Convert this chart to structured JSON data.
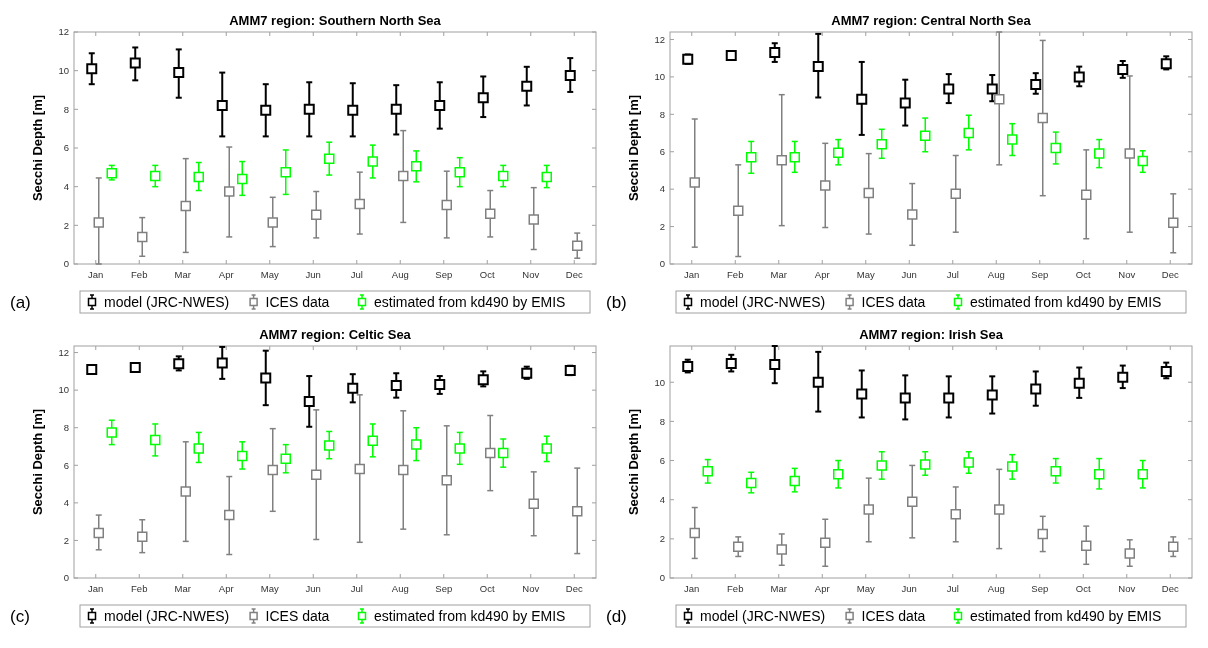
{
  "chart_data": [
    {
      "type": "scatter",
      "title": "AMM7 region: Southern North Sea",
      "ylabel": "Secchi Depth [m]",
      "categories": [
        "Jan",
        "Feb",
        "Mar",
        "Apr",
        "May",
        "Jun",
        "Jul",
        "Aug",
        "Sep",
        "Oct",
        "Nov",
        "Dec"
      ],
      "ylim": [
        0,
        12
      ],
      "yticks": [
        0,
        2,
        4,
        6,
        8,
        10,
        12
      ],
      "grid": false,
      "legend": "bottom",
      "marker": "square",
      "annotations": [
        "(a)"
      ],
      "series": [
        {
          "name": "model (JRC-NWES)",
          "color": "#000000",
          "values": [
            10.1,
            10.4,
            9.9,
            8.2,
            7.95,
            8.0,
            7.95,
            8.0,
            8.2,
            8.6,
            9.2,
            9.75
          ],
          "errors": [
            [
              9.3,
              10.9
            ],
            [
              9.5,
              11.2
            ],
            [
              8.6,
              11.1
            ],
            [
              6.6,
              9.9
            ],
            [
              6.6,
              9.3
            ],
            [
              6.6,
              9.4
            ],
            [
              6.6,
              9.35
            ],
            [
              6.7,
              9.25
            ],
            [
              7.0,
              9.4
            ],
            [
              7.6,
              9.7
            ],
            [
              8.2,
              10.2
            ],
            [
              8.9,
              10.65
            ]
          ]
        },
        {
          "name": "ICES data",
          "color": "#808080",
          "values": [
            2.15,
            1.4,
            3.0,
            3.75,
            2.15,
            2.55,
            3.1,
            4.55,
            3.05,
            2.6,
            2.3,
            0.95
          ],
          "errors": [
            [
              0,
              4.45
            ],
            [
              0.4,
              2.4
            ],
            [
              0.6,
              5.45
            ],
            [
              1.4,
              6.05
            ],
            [
              0.9,
              3.45
            ],
            [
              1.35,
              3.75
            ],
            [
              1.55,
              4.75
            ],
            [
              2.15,
              6.9
            ],
            [
              1.35,
              4.8
            ],
            [
              1.4,
              3.8
            ],
            [
              0.75,
              3.95
            ],
            [
              0.3,
              1.6
            ]
          ]
        },
        {
          "name": "estimated from kd490 by EMIS",
          "color": "#00ff00",
          "values": [
            4.7,
            4.55,
            4.5,
            4.4,
            4.75,
            5.45,
            5.3,
            5.05,
            4.75,
            4.55,
            4.5,
            null
          ],
          "errors": [
            [
              4.35,
              5.1
            ],
            [
              4.0,
              5.1
            ],
            [
              3.8,
              5.25
            ],
            [
              3.55,
              5.3
            ],
            [
              3.6,
              5.9
            ],
            [
              4.6,
              6.3
            ],
            [
              4.45,
              6.15
            ],
            [
              4.25,
              5.85
            ],
            [
              4.0,
              5.5
            ],
            [
              4.0,
              5.1
            ],
            [
              3.95,
              5.1
            ],
            null
          ]
        }
      ]
    },
    {
      "type": "scatter",
      "title": "AMM7 region: Central North Sea",
      "ylabel": "Secchi Depth [m]",
      "categories": [
        "Jan",
        "Feb",
        "Mar",
        "Apr",
        "May",
        "Jun",
        "Jul",
        "Aug",
        "Sep",
        "Oct",
        "Nov",
        "Dec"
      ],
      "ylim": [
        0,
        12.4
      ],
      "yticks": [
        0,
        2,
        4,
        6,
        8,
        10,
        12
      ],
      "grid": false,
      "legend": "bottom",
      "marker": "square",
      "annotations": [
        "(b)"
      ],
      "series": [
        {
          "name": "model (JRC-NWES)",
          "color": "#000000",
          "values": [
            10.95,
            11.15,
            11.3,
            10.55,
            8.8,
            8.6,
            9.35,
            9.35,
            9.6,
            10.0,
            10.4,
            10.7
          ],
          "errors": [
            [
              10.7,
              11.2
            ],
            [
              11.0,
              11.3
            ],
            [
              10.8,
              11.8
            ],
            [
              8.9,
              12.3
            ],
            [
              6.9,
              10.8
            ],
            [
              7.4,
              9.85
            ],
            [
              8.6,
              10.15
            ],
            [
              8.7,
              10.1
            ],
            [
              9.1,
              10.2
            ],
            [
              9.5,
              10.55
            ],
            [
              9.95,
              10.85
            ],
            [
              10.4,
              11.1
            ]
          ]
        },
        {
          "name": "ICES data",
          "color": "#808080",
          "values": [
            4.35,
            2.85,
            5.55,
            4.2,
            3.8,
            2.65,
            3.75,
            8.8,
            7.8,
            3.7,
            5.9,
            2.2
          ],
          "errors": [
            [
              0.9,
              7.75
            ],
            [
              0.4,
              5.3
            ],
            [
              2.05,
              9.05
            ],
            [
              1.95,
              6.45
            ],
            [
              1.6,
              5.9
            ],
            [
              1.0,
              4.3
            ],
            [
              1.7,
              5.8
            ],
            [
              5.3,
              12.4
            ],
            [
              3.65,
              11.95
            ],
            [
              1.35,
              6.1
            ],
            [
              1.7,
              10.05
            ],
            [
              0.6,
              3.75
            ]
          ]
        },
        {
          "name": "estimated from kd490 by EMIS",
          "color": "#00ff00",
          "values": [
            null,
            5.7,
            5.7,
            5.95,
            6.4,
            6.85,
            7.0,
            6.65,
            6.2,
            5.9,
            5.5,
            null
          ],
          "errors": [
            null,
            [
              4.85,
              6.55
            ],
            [
              4.9,
              6.55
            ],
            [
              5.3,
              6.65
            ],
            [
              5.65,
              7.2
            ],
            [
              6.0,
              7.8
            ],
            [
              6.1,
              7.95
            ],
            [
              5.8,
              7.5
            ],
            [
              5.35,
              7.05
            ],
            [
              5.15,
              6.65
            ],
            [
              4.9,
              6.05
            ],
            null
          ]
        }
      ]
    },
    {
      "type": "scatter",
      "title": "AMM7 region: Celtic Sea",
      "ylabel": "Secchi Depth [m]",
      "categories": [
        "Jan",
        "Feb",
        "Mar",
        "Apr",
        "May",
        "Jun",
        "Jul",
        "Aug",
        "Sep",
        "Oct",
        "Nov",
        "Dec"
      ],
      "ylim": [
        0,
        12.35
      ],
      "yticks": [
        0,
        2,
        4,
        6,
        8,
        10,
        12
      ],
      "grid": false,
      "legend": "bottom",
      "marker": "square",
      "annotations": [
        "(c)"
      ],
      "series": [
        {
          "name": "model (JRC-NWES)",
          "color": "#000000",
          "values": [
            11.1,
            11.2,
            11.4,
            11.45,
            10.65,
            9.4,
            10.1,
            10.25,
            10.3,
            10.55,
            10.9,
            11.05
          ],
          "errors": [
            [
              10.9,
              11.3
            ],
            [
              11.0,
              11.4
            ],
            [
              11.05,
              11.8
            ],
            [
              10.6,
              12.3
            ],
            [
              9.2,
              12.1
            ],
            [
              8.05,
              10.75
            ],
            [
              9.35,
              10.85
            ],
            [
              9.6,
              10.9
            ],
            [
              9.8,
              10.75
            ],
            [
              10.2,
              11.0
            ],
            [
              10.6,
              11.25
            ],
            [
              10.8,
              11.3
            ]
          ]
        },
        {
          "name": "ICES data",
          "color": "#808080",
          "values": [
            2.4,
            2.2,
            4.6,
            3.35,
            5.75,
            5.5,
            5.8,
            5.75,
            5.2,
            6.65,
            3.95,
            3.55
          ],
          "errors": [
            [
              1.5,
              3.35
            ],
            [
              1.35,
              3.1
            ],
            [
              1.95,
              7.25
            ],
            [
              1.25,
              5.4
            ],
            [
              3.55,
              7.95
            ],
            [
              2.05,
              8.95
            ],
            [
              1.9,
              9.75
            ],
            [
              2.6,
              8.9
            ],
            [
              2.3,
              8.1
            ],
            [
              4.65,
              8.65
            ],
            [
              2.25,
              5.65
            ],
            [
              1.3,
              5.85
            ]
          ]
        },
        {
          "name": "estimated from kd490 by EMIS",
          "color": "#00ff00",
          "values": [
            7.75,
            7.35,
            6.9,
            6.5,
            6.35,
            7.05,
            7.3,
            7.1,
            6.9,
            6.65,
            6.9,
            null
          ],
          "errors": [
            [
              7.1,
              8.4
            ],
            [
              6.5,
              8.2
            ],
            [
              6.15,
              7.75
            ],
            [
              5.8,
              7.25
            ],
            [
              5.6,
              7.1
            ],
            [
              6.35,
              7.8
            ],
            [
              6.45,
              8.2
            ],
            [
              6.25,
              8.0
            ],
            [
              6.05,
              7.75
            ],
            [
              5.9,
              7.4
            ],
            [
              6.2,
              7.55
            ],
            null
          ]
        }
      ]
    },
    {
      "type": "scatter",
      "title": "AMM7 region: Irish Sea",
      "ylabel": "Secchi Depth [m]",
      "categories": [
        "Jan",
        "Feb",
        "Mar",
        "Apr",
        "May",
        "Jun",
        "Jul",
        "Aug",
        "Sep",
        "Oct",
        "Nov",
        "Dec"
      ],
      "ylim": [
        0,
        11.85
      ],
      "yticks": [
        0,
        2,
        4,
        6,
        8,
        10
      ],
      "grid": false,
      "legend": "bottom",
      "marker": "square",
      "annotations": [
        "(d)"
      ],
      "series": [
        {
          "name": "model (JRC-NWES)",
          "color": "#000000",
          "values": [
            10.8,
            10.95,
            10.9,
            10.0,
            9.4,
            9.2,
            9.2,
            9.35,
            9.65,
            9.95,
            10.25,
            10.55
          ],
          "errors": [
            [
              10.5,
              11.15
            ],
            [
              10.55,
              11.4
            ],
            [
              9.95,
              11.85
            ],
            [
              8.5,
              11.55
            ],
            [
              8.2,
              10.6
            ],
            [
              8.1,
              10.35
            ],
            [
              8.2,
              10.3
            ],
            [
              8.4,
              10.3
            ],
            [
              8.8,
              10.55
            ],
            [
              9.2,
              10.75
            ],
            [
              9.7,
              10.85
            ],
            [
              10.2,
              11.0
            ]
          ]
        },
        {
          "name": "ICES data",
          "color": "#808080",
          "values": [
            2.3,
            1.6,
            1.45,
            1.8,
            3.5,
            3.9,
            3.25,
            3.5,
            2.25,
            1.65,
            1.25,
            1.6
          ],
          "errors": [
            [
              1.0,
              3.6
            ],
            [
              1.1,
              2.1
            ],
            [
              0.65,
              2.25
            ],
            [
              0.6,
              3.0
            ],
            [
              1.85,
              5.1
            ],
            [
              2.05,
              5.75
            ],
            [
              1.85,
              4.65
            ],
            [
              1.5,
              5.55
            ],
            [
              1.35,
              3.15
            ],
            [
              0.7,
              2.65
            ],
            [
              0.6,
              1.95
            ],
            [
              1.1,
              2.1
            ]
          ]
        },
        {
          "name": "estimated from kd490 by EMIS",
          "color": "#00ff00",
          "values": [
            5.45,
            4.85,
            4.95,
            5.3,
            5.75,
            5.8,
            5.9,
            5.7,
            5.45,
            5.3,
            5.3,
            null
          ],
          "errors": [
            [
              4.85,
              6.05
            ],
            [
              4.35,
              5.4
            ],
            [
              4.4,
              5.6
            ],
            [
              4.6,
              6.0
            ],
            [
              5.05,
              6.45
            ],
            [
              5.25,
              6.45
            ],
            [
              5.35,
              6.45
            ],
            [
              5.05,
              6.3
            ],
            [
              4.85,
              6.1
            ],
            [
              4.55,
              6.1
            ],
            [
              4.6,
              6.0
            ],
            null
          ]
        }
      ]
    }
  ]
}
